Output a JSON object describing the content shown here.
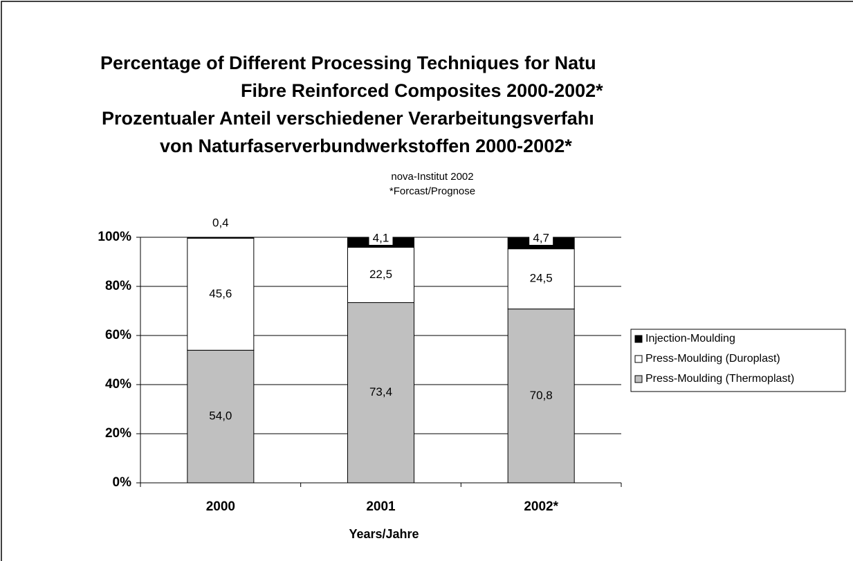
{
  "chart_data": {
    "type": "stacked_bar",
    "title": [
      "Percentage of Different Processing Techniques for Natu",
      "Fibre Reinforced Composites 2000-2002*",
      "Prozentualer Anteil verschiedener Verarbeitungsverfahı",
      "von Naturfaserverbundwerkstoffen 2000-2002*"
    ],
    "subtitle": [
      "nova-Institut 2002",
      "*Forcast/Prognose"
    ],
    "x_label": "Years/Jahre",
    "categories": [
      "2000",
      "2001",
      "2002*"
    ],
    "series": [
      {
        "name": "Press-Moulding (Thermoplast)",
        "color": "#c0c0c0",
        "values": [
          54.0,
          73.4,
          70.8
        ],
        "value_labels": [
          "54,0",
          "73,4",
          "70,8"
        ]
      },
      {
        "name": "Press-Moulding (Duroplast)",
        "color": "#ffffff",
        "values": [
          45.6,
          22.5,
          24.5
        ],
        "value_labels": [
          "45,6",
          "22,5",
          "24,5"
        ]
      },
      {
        "name": "Injection-Moulding",
        "color": "#000000",
        "values": [
          0.4,
          4.1,
          4.7
        ],
        "value_labels": [
          "0,4",
          "4,1",
          "4,7"
        ]
      }
    ],
    "ylim": [
      0,
      100
    ],
    "yticks": [
      {
        "value": 0,
        "label": "0%"
      },
      {
        "value": 20,
        "label": "20%"
      },
      {
        "value": 40,
        "label": "40%"
      },
      {
        "value": 60,
        "label": "60%"
      },
      {
        "value": 80,
        "label": "80%"
      },
      {
        "value": 100,
        "label": "100%"
      }
    ],
    "grid": true,
    "legend": "right"
  }
}
